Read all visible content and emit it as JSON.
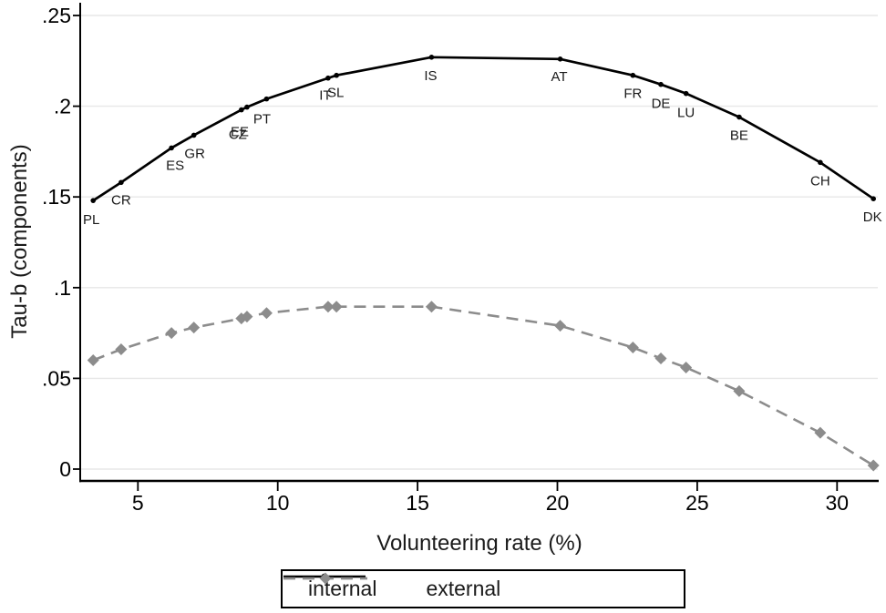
{
  "figure": {
    "background": "#ffffff"
  },
  "chart_data": {
    "type": "line",
    "title": "",
    "xlabel": "Volunteering rate (%)",
    "ylabel": "Tau-b (components)",
    "xlim": [
      2.9,
      31.5
    ],
    "ylim": [
      -0.007,
      0.2535
    ],
    "x_ticks": [
      5,
      10,
      15,
      20,
      25,
      30
    ],
    "y_ticks": [
      0,
      0.05,
      0.1,
      0.15,
      0.2,
      0.25
    ],
    "y_tick_labels": [
      "0",
      ".05",
      ".1",
      ".15",
      ".2",
      ".25"
    ],
    "grid": "horizontal-only",
    "legend_position": "bottom-center",
    "colors": {
      "internal": "#000000",
      "external": "#8c8c8c",
      "gridline": "#e7e7e7",
      "axis": "#000000",
      "country_label": "#1a1a1a"
    },
    "series": [
      {
        "name": "internal",
        "style": "solid",
        "marker": "circle",
        "color": "#000000"
      },
      {
        "name": "external",
        "style": "dashed",
        "marker": "diamond",
        "color": "#8c8c8c"
      }
    ],
    "points": [
      {
        "country": "PL",
        "x": 3.4,
        "internal": 0.148,
        "external": 0.06
      },
      {
        "country": "CR",
        "x": 4.4,
        "internal": 0.158,
        "external": 0.066
      },
      {
        "country": "ES",
        "x": 6.2,
        "internal": 0.177,
        "external": 0.075
      },
      {
        "country": "GR",
        "x": 7.0,
        "internal": 0.184,
        "external": 0.078
      },
      {
        "country": "CZ",
        "x": 8.7,
        "internal": 0.198,
        "external": 0.083
      },
      {
        "country": "EE",
        "x": 8.9,
        "internal": 0.1995,
        "external": 0.084
      },
      {
        "country": "PT",
        "x": 9.6,
        "internal": 0.204,
        "external": 0.086
      },
      {
        "country": "IT",
        "x": 11.8,
        "internal": 0.2155,
        "external": 0.0895
      },
      {
        "country": "SL",
        "x": 12.1,
        "internal": 0.217,
        "external": 0.0895
      },
      {
        "country": "IS",
        "x": 15.5,
        "internal": 0.227,
        "external": 0.0895
      },
      {
        "country": "AT",
        "x": 20.1,
        "internal": 0.226,
        "external": 0.079
      },
      {
        "country": "FR",
        "x": 22.7,
        "internal": 0.217,
        "external": 0.067
      },
      {
        "country": "DE",
        "x": 23.7,
        "internal": 0.212,
        "external": 0.061
      },
      {
        "country": "LU",
        "x": 24.6,
        "internal": 0.207,
        "external": 0.056
      },
      {
        "country": "BE",
        "x": 26.5,
        "internal": 0.194,
        "external": 0.043
      },
      {
        "country": "CH",
        "x": 29.4,
        "internal": 0.169,
        "external": 0.02
      },
      {
        "country": "DK",
        "x": 31.3,
        "internal": 0.149,
        "external": 0.002
      }
    ],
    "label_offsets": {
      "PL": [
        -2,
        21
      ],
      "CR": [
        0,
        19
      ],
      "ES": [
        4,
        19
      ],
      "GR": [
        1,
        20
      ],
      "CZ": [
        -4,
        27
      ],
      "EE": [
        -8,
        27
      ],
      "PT": [
        -5,
        22
      ],
      "IT": [
        -3,
        19
      ],
      "SL": [
        -1,
        19
      ],
      "IS": [
        -1,
        20
      ],
      "AT": [
        -1,
        19
      ],
      "FR": [
        0,
        20
      ],
      "DE": [
        0,
        21
      ],
      "LU": [
        0,
        21
      ],
      "BE": [
        0,
        20
      ],
      "CH": [
        0,
        20
      ],
      "DK": [
        -1,
        20
      ]
    }
  },
  "legend": {
    "items": [
      {
        "label": "internal"
      },
      {
        "label": "external"
      }
    ]
  }
}
